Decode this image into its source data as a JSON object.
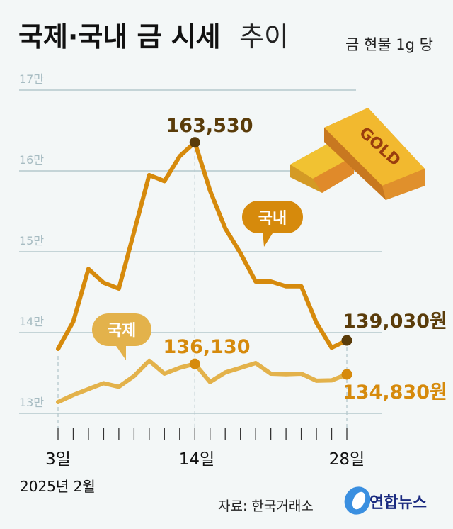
{
  "title_bold": "국제·국내 금 시세",
  "title_light": "추이",
  "unit": "금 현물 1g 당",
  "source": "자료: 한국거래소",
  "logo_text": "연합뉴스",
  "bar_label": "GOLD",
  "colors": {
    "domestic": "#d68a0c",
    "international": "#e3b24b",
    "dark": "#5a3c0a",
    "grid": "#a9bfc4"
  },
  "chart_data": {
    "type": "line",
    "title": "국제·국내 금 시세 추이",
    "xlabel": "2025년 2월",
    "ylabel": "금 현물 1g 당 (원)",
    "ylim": [
      130000,
      170000
    ],
    "yticks": [
      130000,
      140000,
      150000,
      160000,
      170000
    ],
    "ytick_labels": [
      "13만",
      "14만",
      "15만",
      "16만",
      "17만"
    ],
    "x": [
      "3",
      "4",
      "5",
      "6",
      "7",
      "10",
      "11",
      "12",
      "13",
      "14",
      "17",
      "18",
      "19",
      "20",
      "21",
      "24",
      "25",
      "26",
      "27",
      "28"
    ],
    "xtick_labels": [
      {
        "index": 0,
        "label": "3일"
      },
      {
        "index": 9,
        "label": "14일"
      },
      {
        "index": 19,
        "label": "28일"
      }
    ],
    "grid": true,
    "series": [
      {
        "name": "국내",
        "values": [
          137980,
          141350,
          147870,
          146170,
          145440,
          152460,
          159480,
          158740,
          161810,
          163530,
          157570,
          152900,
          149830,
          146320,
          146320,
          145730,
          145730,
          141200,
          138130,
          139030
        ]
      },
      {
        "name": "국제",
        "values": [
          131400,
          132280,
          133010,
          133740,
          133300,
          134620,
          136520,
          134910,
          135640,
          136130,
          133890,
          135060,
          135640,
          136230,
          134910,
          134850,
          134910,
          134040,
          134090,
          134830
        ]
      }
    ],
    "annotations": {
      "domestic_peak": "163,530",
      "domestic_last": "139,030원",
      "international_peak": "136,130",
      "international_last": "134,830원"
    }
  }
}
